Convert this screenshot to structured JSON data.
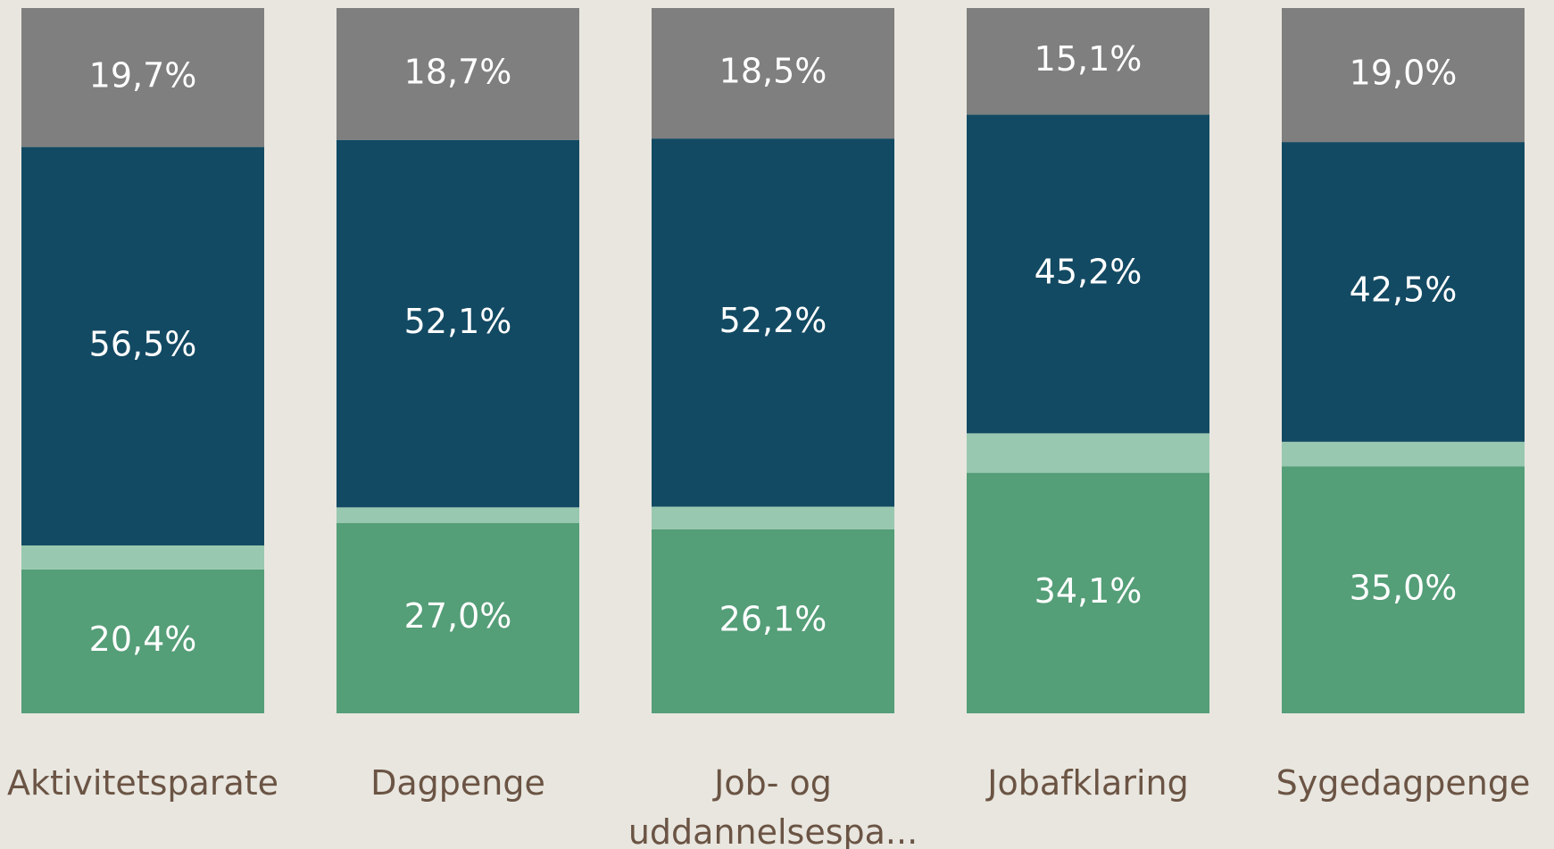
{
  "chart_data": {
    "type": "stacked_bar",
    "categories": [
      "Aktivitetsparate",
      "Dagpenge",
      "Job- og uddannelsespa...",
      "Jobafklaring",
      "Sygedagpenge"
    ],
    "ylim": [
      0,
      100
    ],
    "series": [
      {
        "color": "#549e78",
        "values": [
          20.4,
          27.0,
          26.1,
          34.1,
          35.0
        ],
        "value_labels": [
          "20,4%",
          "27,0%",
          "26,1%",
          "34,1%",
          "35,0%"
        ]
      },
      {
        "color": "#98c8b0",
        "values": [
          3.4,
          2.2,
          3.2,
          5.6,
          3.5
        ]
      },
      {
        "color": "#134a63",
        "values": [
          56.5,
          52.1,
          52.2,
          45.2,
          42.5
        ],
        "value_labels": [
          "56,5%",
          "52,1%",
          "52,2%",
          "45,2%",
          "42,5%"
        ]
      },
      {
        "color": "#7f7f7f",
        "values": [
          19.7,
          18.7,
          18.5,
          15.1,
          19.0
        ],
        "value_labels": [
          "19,7%",
          "18,7%",
          "18,5%",
          "15,1%",
          "19,0%"
        ]
      }
    ]
  }
}
